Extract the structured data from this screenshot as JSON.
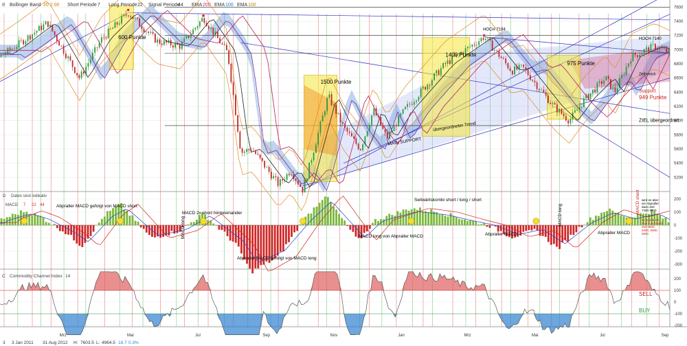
{
  "header": {
    "tool_label": "B",
    "bollinger_label": "Bollinger Band",
    "bollinger_params": "20 2.00",
    "short_label": "Short Periode",
    "short_val": "7",
    "long_label": "Long Periode",
    "long_val": "22",
    "signal_label": "Signal Periode",
    "signal_val": "44",
    "ema1_label": "EMA",
    "ema1_val": "200",
    "ema2_label": "EMA",
    "ema2_val": "100",
    "ema3_label": "EMA",
    "ema3_val": "100"
  },
  "panel_labels": {
    "macd_marker": "D",
    "macd_note": "Daten sind indikativ",
    "macd_name": "MACD",
    "macd_p1": "7",
    "macd_p2": "22",
    "macd_p3": "44",
    "cci_marker": "C",
    "cci_name": "Commodity Channel Index",
    "cci_period": "14"
  },
  "status": {
    "row_num": "3",
    "start_date": "3 Jan 2011",
    "end_date": "31 Aug 2012",
    "high_label": "H:",
    "high_val": "7603.5",
    "low_label": "L:",
    "low_val": "4964.5",
    "change_val": "18.7",
    "change_pct": "0.3%"
  },
  "chart_data": [
    {
      "type": "line",
      "subtype": "candlestick with technical overlays",
      "ylim": [
        5000,
        7700
      ],
      "y_ticks": [
        5200,
        5400,
        5600,
        5800,
        6000,
        6200,
        6400,
        6600,
        6800,
        7000,
        7200,
        7400,
        7600
      ],
      "x_ticks": [
        "Mrz",
        "Mai",
        "Jul",
        "Sep",
        "Nov",
        "Jan",
        "Mrz",
        "Mai",
        "Jul",
        "Sep"
      ],
      "x_range": [
        "2011-01-03",
        "2012-08-31"
      ],
      "price_path": [
        [
          "2011-01-03",
          6900
        ],
        [
          "2011-01-20",
          7080
        ],
        [
          "2011-02-15",
          7380
        ],
        [
          "2011-03-16",
          6600
        ],
        [
          "2011-04-05",
          7150
        ],
        [
          "2011-04-29",
          7520
        ],
        [
          "2011-05-25",
          7120
        ],
        [
          "2011-06-15",
          7050
        ],
        [
          "2011-07-06",
          7450
        ],
        [
          "2011-07-28",
          6950
        ],
        [
          "2011-08-09",
          5550
        ],
        [
          "2011-08-19",
          5600
        ],
        [
          "2011-09-12",
          5100
        ],
        [
          "2011-09-23",
          5300
        ],
        [
          "2011-10-04",
          5020
        ],
        [
          "2011-10-27",
          6350
        ],
        [
          "2011-11-10",
          5900
        ],
        [
          "2011-11-25",
          5600
        ],
        [
          "2011-12-07",
          6150
        ],
        [
          "2011-12-19",
          5750
        ],
        [
          "2012-01-04",
          6150
        ],
        [
          "2012-02-10",
          6800
        ],
        [
          "2012-03-16",
          7180
        ],
        [
          "2012-04-10",
          6700
        ],
        [
          "2012-04-20",
          6750
        ],
        [
          "2012-05-18",
          6200
        ],
        [
          "2012-06-01",
          6000
        ],
        [
          "2012-06-15",
          6300
        ],
        [
          "2012-07-04",
          6600
        ],
        [
          "2012-07-12",
          6400
        ],
        [
          "2012-07-27",
          6900
        ],
        [
          "2012-08-17",
          7050
        ],
        [
          "2012-08-31",
          6950
        ]
      ],
      "annotations": [
        {
          "text": "600 Punkte",
          "date": "2011-04-20",
          "value": 7150,
          "box": [
            "2011-04-12",
            "2011-05-04",
            6720,
            7620
          ]
        },
        {
          "text": "1500 Punkte",
          "date": "2011-10-20",
          "value": 6520,
          "box": [
            "2011-10-05",
            "2011-11-04",
            5140,
            6640
          ]
        },
        {
          "text": "1400 Punkte",
          "date": "2012-02-10",
          "value": 6900,
          "box": [
            "2012-01-20",
            "2012-03-03",
            5780,
            7170
          ]
        },
        {
          "text": "975 Punkte",
          "date": "2012-05-30",
          "value": 6780,
          "box": [
            "2012-05-12",
            "2012-06-11",
            6020,
            6920
          ]
        },
        {
          "text": "HOCH 7194",
          "date": "2012-03-15",
          "value": 7270
        },
        {
          "text": "HOCH 7140",
          "date": "2012-08-05",
          "value": 7140
        },
        {
          "text": "Zielbereich",
          "date": "2012-08-31",
          "value": 6640
        },
        {
          "text": "Support",
          "date": "2012-08-30",
          "value": 6400
        },
        {
          "text": "949 Punkte",
          "date": "2012-08-05",
          "value": 6300
        },
        {
          "text": "ZIEL übergeordnet",
          "date": "2012-08-10",
          "value": 5980
        },
        {
          "text": "übergeordneter Trend",
          "date": "2012-01-30",
          "value": 5850
        },
        {
          "text": "MAIN SUPPORT",
          "date": "2011-12-20",
          "value": 5650
        }
      ]
    },
    {
      "type": "bar",
      "title": "MACD",
      "params": [
        7,
        22,
        44
      ],
      "ylim": [
        -500,
        500
      ],
      "y_ticks": [
        500,
        400,
        300,
        200,
        100,
        0,
        -100,
        -200,
        -300,
        -400,
        -500
      ],
      "histogram_path": [
        [
          "2011-01-03",
          40
        ],
        [
          "2011-01-25",
          110
        ],
        [
          "2011-02-10",
          60
        ],
        [
          "2011-03-04",
          -60
        ],
        [
          "2011-03-18",
          -160
        ],
        [
          "2011-04-08",
          80
        ],
        [
          "2011-04-22",
          160
        ],
        [
          "2011-05-20",
          -100
        ],
        [
          "2011-06-15",
          -40
        ],
        [
          "2011-07-06",
          90
        ],
        [
          "2011-08-05",
          -150
        ],
        [
          "2011-08-18",
          -360
        ],
        [
          "2011-09-12",
          -240
        ],
        [
          "2011-10-04",
          30
        ],
        [
          "2011-10-24",
          230
        ],
        [
          "2011-11-23",
          -120
        ],
        [
          "2011-12-09",
          40
        ],
        [
          "2012-01-10",
          130
        ],
        [
          "2012-02-05",
          100
        ],
        [
          "2012-03-01",
          40
        ],
        [
          "2012-03-20",
          0
        ],
        [
          "2012-04-10",
          -90
        ],
        [
          "2012-05-02",
          -40
        ],
        [
          "2012-05-22",
          -180
        ],
        [
          "2012-06-15",
          20
        ],
        [
          "2012-07-05",
          120
        ],
        [
          "2012-07-25",
          60
        ],
        [
          "2012-08-15",
          110
        ],
        [
          "2012-08-31",
          20
        ]
      ],
      "annotations": [
        "Abpraller MACD gefolgt von MACD short",
        "MACD 2x short hintereinander",
        "MACD long",
        "Abpraller MACD gefolgt von MACD long",
        "MACD long von Abpraller MACD",
        "Seitwärtskombi short / long / short",
        "MACD long",
        "Abpraller MACD",
        "MACD short",
        "Abpraller MACD",
        "wird es aber ein Abpraller dann Ziel 7400-7600",
        "es wurde ein short und somit Ziel 6800, 6400, 6080, 5800"
      ]
    },
    {
      "type": "area",
      "title": "Commodity Channel Index",
      "period": 14,
      "ylim": [
        -300,
        300
      ],
      "y_ticks": [
        300,
        200,
        100,
        0,
        -100,
        -200,
        -300
      ],
      "threshold_labels": {
        "sell": "SELL",
        "buy": "BUY"
      }
    }
  ]
}
